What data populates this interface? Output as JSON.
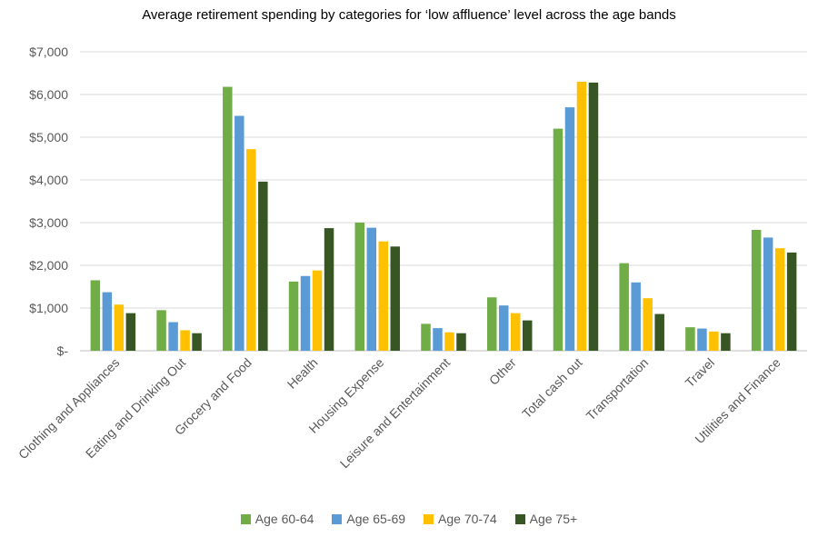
{
  "chart_data": {
    "type": "bar",
    "title": "Average retirement spending by categories for ‘low affluence’ level across the age bands",
    "categories": [
      "Clothing and Appliances",
      "Eating and Drinking Out",
      "Grocery and Food",
      "Health",
      "Housing Expense",
      "Leisure and Entertainment",
      "Other",
      "Total cash out",
      "Transportation",
      "Travel",
      "Utilities and Finance"
    ],
    "series": [
      {
        "name": "Age 60-64",
        "color": "#70ad47",
        "values": [
          1650,
          950,
          6180,
          1620,
          3000,
          630,
          1250,
          5200,
          2050,
          550,
          2830
        ]
      },
      {
        "name": "Age 65-69",
        "color": "#5b9bd5",
        "values": [
          1370,
          670,
          5500,
          1750,
          2880,
          530,
          1060,
          5700,
          1600,
          520,
          2650
        ]
      },
      {
        "name": "Age 70-74",
        "color": "#ffc000",
        "values": [
          1080,
          480,
          4720,
          1880,
          2560,
          430,
          880,
          6300,
          1230,
          450,
          2400
        ]
      },
      {
        "name": "Age 75+",
        "color": "#375623",
        "values": [
          880,
          410,
          3960,
          2870,
          2440,
          410,
          710,
          6280,
          860,
          410,
          2300
        ]
      }
    ],
    "ylim": [
      0,
      7000
    ],
    "yticks": [
      "$-",
      "$1,000",
      "$2,000",
      "$3,000",
      "$4,000",
      "$5,000",
      "$6,000",
      "$7,000"
    ],
    "grid": true,
    "legend_position": "bottom"
  }
}
